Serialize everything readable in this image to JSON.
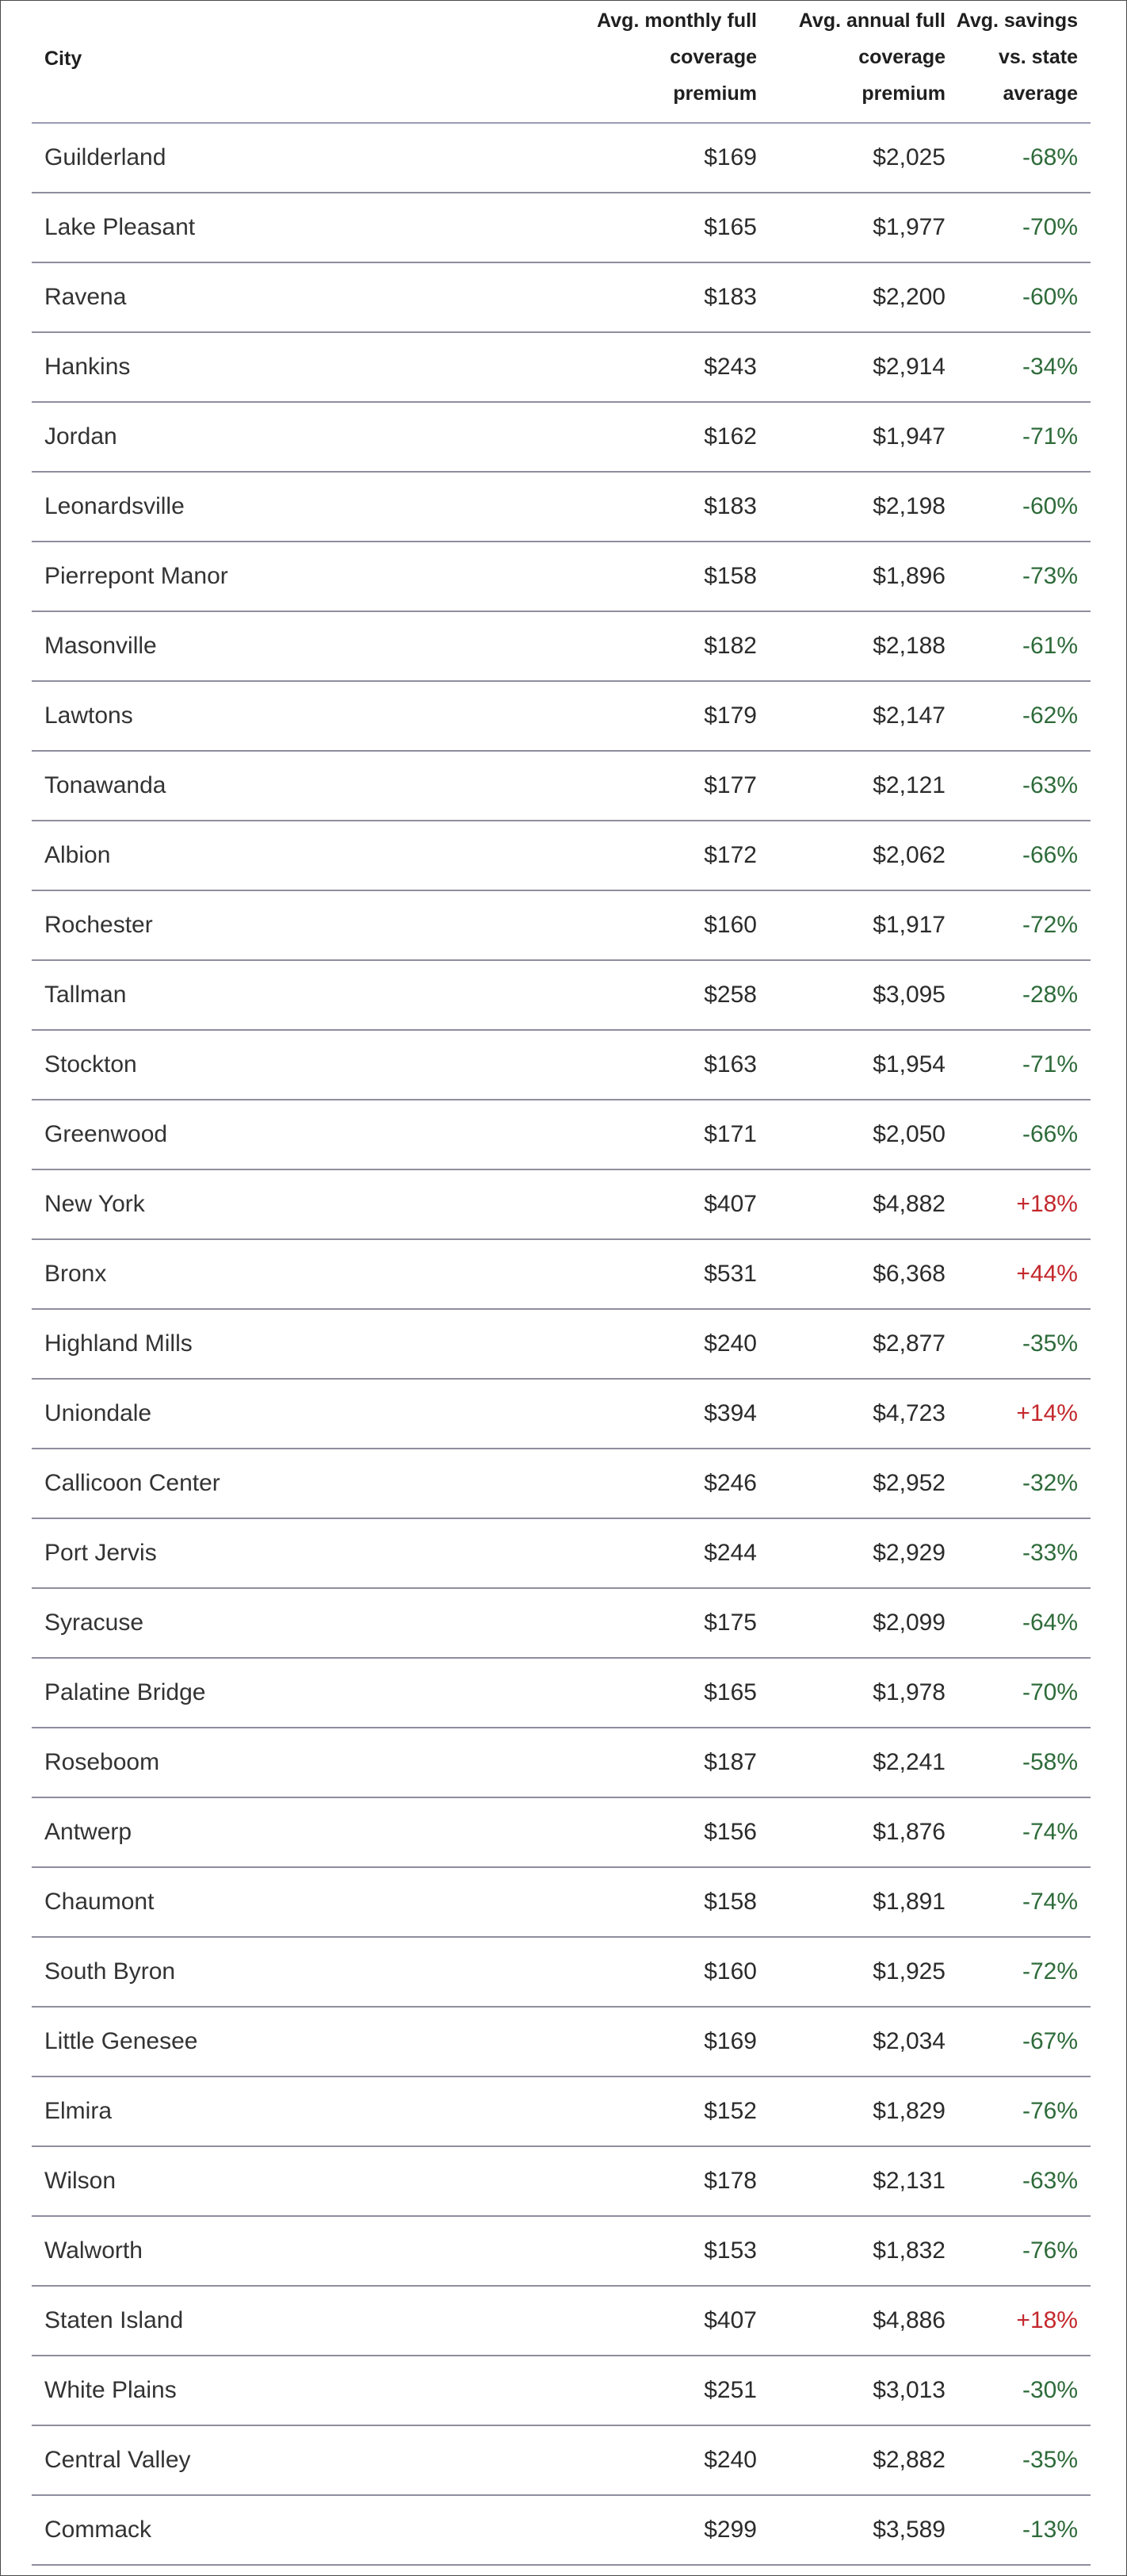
{
  "table": {
    "headers": {
      "city": "City",
      "monthly": [
        "Avg. monthly full",
        "coverage",
        "premium"
      ],
      "annual": [
        "Avg. annual full",
        "coverage",
        "premium"
      ],
      "savings": [
        "Avg. savings",
        "vs. state",
        "average"
      ]
    },
    "rows": [
      {
        "city": "Guilderland",
        "monthly": "$169",
        "annual": "$2,025",
        "savings": "-68%"
      },
      {
        "city": "Lake Pleasant",
        "monthly": "$165",
        "annual": "$1,977",
        "savings": "-70%"
      },
      {
        "city": "Ravena",
        "monthly": "$183",
        "annual": "$2,200",
        "savings": "-60%"
      },
      {
        "city": "Hankins",
        "monthly": "$243",
        "annual": "$2,914",
        "savings": "-34%"
      },
      {
        "city": "Jordan",
        "monthly": "$162",
        "annual": "$1,947",
        "savings": "-71%"
      },
      {
        "city": "Leonardsville",
        "monthly": "$183",
        "annual": "$2,198",
        "savings": "-60%"
      },
      {
        "city": "Pierrepont Manor",
        "monthly": "$158",
        "annual": "$1,896",
        "savings": "-73%"
      },
      {
        "city": "Masonville",
        "monthly": "$182",
        "annual": "$2,188",
        "savings": "-61%"
      },
      {
        "city": "Lawtons",
        "monthly": "$179",
        "annual": "$2,147",
        "savings": "-62%"
      },
      {
        "city": "Tonawanda",
        "monthly": "$177",
        "annual": "$2,121",
        "savings": "-63%"
      },
      {
        "city": "Albion",
        "monthly": "$172",
        "annual": "$2,062",
        "savings": "-66%"
      },
      {
        "city": "Rochester",
        "monthly": "$160",
        "annual": "$1,917",
        "savings": "-72%"
      },
      {
        "city": "Tallman",
        "monthly": "$258",
        "annual": "$3,095",
        "savings": "-28%"
      },
      {
        "city": "Stockton",
        "monthly": "$163",
        "annual": "$1,954",
        "savings": "-71%"
      },
      {
        "city": "Greenwood",
        "monthly": "$171",
        "annual": "$2,050",
        "savings": "-66%"
      },
      {
        "city": "New York",
        "monthly": "$407",
        "annual": "$4,882",
        "savings": "+18%"
      },
      {
        "city": "Bronx",
        "monthly": "$531",
        "annual": "$6,368",
        "savings": "+44%"
      },
      {
        "city": "Highland Mills",
        "monthly": "$240",
        "annual": "$2,877",
        "savings": "-35%"
      },
      {
        "city": "Uniondale",
        "monthly": "$394",
        "annual": "$4,723",
        "savings": "+14%"
      },
      {
        "city": "Callicoon Center",
        "monthly": "$246",
        "annual": "$2,952",
        "savings": "-32%"
      },
      {
        "city": "Port Jervis",
        "monthly": "$244",
        "annual": "$2,929",
        "savings": "-33%"
      },
      {
        "city": "Syracuse",
        "monthly": "$175",
        "annual": "$2,099",
        "savings": "-64%"
      },
      {
        "city": "Palatine Bridge",
        "monthly": "$165",
        "annual": "$1,978",
        "savings": "-70%"
      },
      {
        "city": "Roseboom",
        "monthly": "$187",
        "annual": "$2,241",
        "savings": "-58%"
      },
      {
        "city": "Antwerp",
        "monthly": "$156",
        "annual": "$1,876",
        "savings": "-74%"
      },
      {
        "city": "Chaumont",
        "monthly": "$158",
        "annual": "$1,891",
        "savings": "-74%"
      },
      {
        "city": "South Byron",
        "monthly": "$160",
        "annual": "$1,925",
        "savings": "-72%"
      },
      {
        "city": "Little Genesee",
        "monthly": "$169",
        "annual": "$2,034",
        "savings": "-67%"
      },
      {
        "city": "Elmira",
        "monthly": "$152",
        "annual": "$1,829",
        "savings": "-76%"
      },
      {
        "city": "Wilson",
        "monthly": "$178",
        "annual": "$2,131",
        "savings": "-63%"
      },
      {
        "city": "Walworth",
        "monthly": "$153",
        "annual": "$1,832",
        "savings": "-76%"
      },
      {
        "city": "Staten Island",
        "monthly": "$407",
        "annual": "$4,886",
        "savings": "+18%"
      },
      {
        "city": "White Plains",
        "monthly": "$251",
        "annual": "$3,013",
        "savings": "-30%"
      },
      {
        "city": "Central Valley",
        "monthly": "$240",
        "annual": "$2,882",
        "savings": "-35%"
      },
      {
        "city": "Commack",
        "monthly": "$299",
        "annual": "$3,589",
        "savings": "-13%"
      }
    ]
  },
  "colors": {
    "negative_savings": "#2e6b3a",
    "positive_savings": "#c3282d",
    "row_divider": "#8e8e9e"
  }
}
